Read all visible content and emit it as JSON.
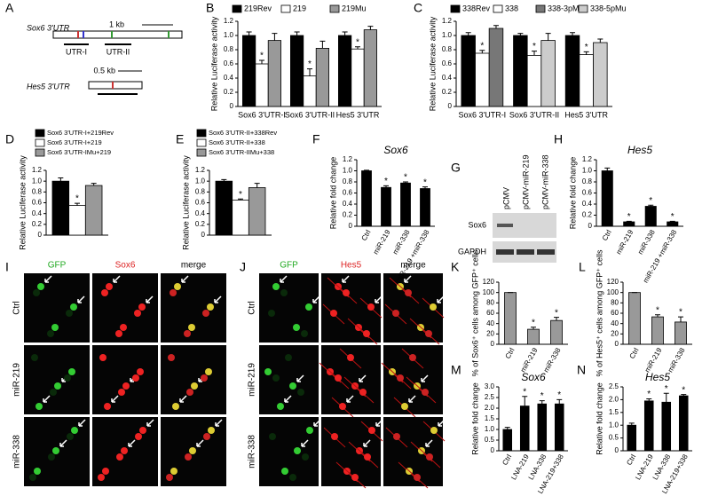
{
  "panel_letters": [
    "A",
    "B",
    "C",
    "D",
    "E",
    "F",
    "G",
    "H",
    "I",
    "J",
    "K",
    "L",
    "M",
    "N"
  ],
  "diagram": {
    "sox6": "Sox6 3'UTR",
    "scale1": "1 kb",
    "utr1": "UTR-I",
    "utr2": "UTR-II",
    "scale2": "0.5 kb",
    "hes5": "Hes5 3'UTR"
  },
  "blot": {
    "lanes": [
      "pCMV",
      "pCMV-miR-219",
      "pCMV-miR-338"
    ],
    "bands": [
      "Sox6",
      "GAPDH"
    ]
  },
  "images_I": {
    "columns": [
      "GFP",
      "Sox6",
      "merge"
    ],
    "rows": [
      "Ctrl",
      "miR-219",
      "miR-338"
    ]
  },
  "images_J": {
    "columns": [
      "GFP",
      "Hes5",
      "merge"
    ],
    "rows": [
      "Ctrl",
      "miR-219",
      "miR-338"
    ]
  },
  "chart_data": [
    {
      "type": "bar",
      "ylabel": "Relative Luciferase activity",
      "categories": [
        "Sox6 3'UTR-I",
        "Sox6 3'UTR-II",
        "Hes5 3'UTR"
      ],
      "series": [
        {
          "name": "219Rev",
          "color": "#000000",
          "values": [
            1.0,
            1.0,
            1.0
          ],
          "errors": [
            0.05,
            0.05,
            0.05
          ],
          "annotations": [
            null,
            null,
            null
          ]
        },
        {
          "name": "219",
          "color": "#ffffff",
          "values": [
            0.6,
            0.43,
            0.81
          ],
          "errors": [
            0.05,
            0.1,
            0.03
          ],
          "annotations": [
            "*",
            "*",
            "*"
          ]
        },
        {
          "name": "219Mu",
          "color": "#999999",
          "values": [
            0.93,
            0.82,
            1.08
          ],
          "errors": [
            0.1,
            0.1,
            0.05
          ],
          "annotations": [
            null,
            null,
            null
          ]
        }
      ],
      "ylim": [
        0,
        1.2
      ],
      "yticks": [
        0,
        0.2,
        0.4,
        0.6,
        0.8,
        {
          "value": 1,
          "label": "1.0"
        },
        1.2
      ]
    },
    {
      "type": "bar",
      "ylabel": "Relative Luciferase activity",
      "categories": [
        "Sox6 3'UTR-I",
        "Sox6 3'UTR-II",
        "Hes5 3'UTR"
      ],
      "series": [
        {
          "name": "338Rev",
          "color": "#000000",
          "values": [
            1.0,
            1.0,
            1.0
          ],
          "errors": [
            0.04,
            0.03,
            0.04
          ],
          "annotations": [
            null,
            null,
            null
          ]
        },
        {
          "name": "338",
          "color": "#ffffff",
          "values": [
            0.75,
            0.72,
            0.73
          ],
          "errors": [
            0.04,
            0.06,
            0.04
          ],
          "annotations": [
            "*",
            "*",
            "*"
          ]
        },
        {
          "name": "338-3pMu",
          "color": "#777777",
          "values": [
            1.1,
            null,
            null
          ],
          "errors": [
            0.04,
            null,
            null
          ],
          "annotations": [
            null,
            null,
            null
          ]
        },
        {
          "name": "338-5pMu",
          "color": "#cccccc",
          "values": [
            null,
            0.93,
            0.9
          ],
          "errors": [
            null,
            0.1,
            0.05
          ],
          "annotations": [
            null,
            null,
            null
          ]
        }
      ],
      "ylim": [
        0,
        1.2
      ],
      "yticks": [
        0,
        0.2,
        0.4,
        0.6,
        0.8,
        {
          "value": 1,
          "label": "1.0"
        },
        1.2
      ]
    },
    {
      "type": "bar",
      "ylabel": "Relative Luciferase activity",
      "categories": [
        null
      ],
      "series": [
        {
          "name": "Sox6 3'UTR-I+219Rev",
          "color": "#000000",
          "values": [
            1.0
          ],
          "errors": [
            0.06
          ],
          "annotations": [
            null
          ]
        },
        {
          "name": "Sox6 3'UTR-I+219",
          "color": "#ffffff",
          "values": [
            0.55
          ],
          "errors": [
            0.04
          ],
          "annotations": [
            "*"
          ]
        },
        {
          "name": "Sox6 3'UTR-IMu+219",
          "color": "#999999",
          "values": [
            0.92
          ],
          "errors": [
            0.04
          ],
          "annotations": [
            null
          ]
        }
      ],
      "ylim": [
        0,
        1.2
      ],
      "yticks": [
        0,
        0.2,
        0.4,
        0.6,
        0.8,
        {
          "value": 1,
          "label": "1.0"
        },
        1.2
      ]
    },
    {
      "type": "bar",
      "ylabel": "Relative Luciferase activity",
      "categories": [
        null
      ],
      "series": [
        {
          "name": "Sox6 3'UTR-II+338Rev",
          "color": "#000000",
          "values": [
            1.0
          ],
          "errors": [
            0.03
          ],
          "annotations": [
            null
          ]
        },
        {
          "name": "Sox6 3'UTR-II+338",
          "color": "#ffffff",
          "values": [
            0.65
          ],
          "errors": [
            0.02
          ],
          "annotations": [
            "*"
          ]
        },
        {
          "name": "Sox6 3'UTR-IIMu+338",
          "color": "#999999",
          "values": [
            0.88
          ],
          "errors": [
            0.08
          ],
          "annotations": [
            null
          ]
        }
      ],
      "ylim": [
        0,
        1.2
      ],
      "yticks": [
        0,
        0.2,
        0.4,
        0.6,
        0.8,
        {
          "value": 1,
          "label": "1.0"
        },
        1.2
      ]
    },
    {
      "type": "bar",
      "title": "Sox6",
      "ylabel": "Relative fold change",
      "categories": [
        "Ctrl",
        "miR-219",
        "miR-338",
        "miR-219 +miR-338"
      ],
      "color": "#000000",
      "values": [
        1.0,
        0.7,
        0.78,
        0.68
      ],
      "errors": [
        0.01,
        0.03,
        0.02,
        0.03
      ],
      "annotations": [
        null,
        "*",
        "*",
        "*"
      ],
      "ylim": [
        0,
        1.2
      ],
      "yticks": [
        0,
        0.2,
        0.4,
        0.6,
        0.8,
        {
          "value": 1,
          "label": "1.0"
        },
        1.2
      ]
    },
    {
      "type": "bar",
      "title": "Hes5",
      "ylabel": "Relative fold change",
      "categories": [
        "Ctrl",
        "miR-219",
        "miR-338",
        "miR-219 +miR-338"
      ],
      "color": "#000000",
      "values": [
        1.0,
        0.08,
        0.36,
        0.08
      ],
      "errors": [
        0.05,
        0.01,
        0.02,
        0.01
      ],
      "annotations": [
        null,
        "*",
        "*",
        "*"
      ],
      "ylim": [
        0,
        1.2
      ],
      "yticks": [
        0,
        0.2,
        0.4,
        0.6,
        0.8,
        {
          "value": 1,
          "label": "1.0"
        },
        1.2
      ]
    },
    {
      "type": "bar",
      "ylabel": "% of Sox6⁺ cells among GFP⁺ cells",
      "categories": [
        "Ctrl",
        "miR-219",
        "miR-338"
      ],
      "color": "#999999",
      "values": [
        100,
        29,
        46
      ],
      "errors": [
        0,
        4,
        6
      ],
      "annotations": [
        null,
        "*",
        "*"
      ],
      "ylim": [
        0,
        120
      ],
      "yticks": [
        0,
        20,
        40,
        60,
        80,
        100,
        120
      ]
    },
    {
      "type": "bar",
      "ylabel": "% of Hes5⁺ cells among GFP⁺ cells",
      "categories": [
        "Ctrl",
        "miR-219",
        "miR-338"
      ],
      "color": "#999999",
      "values": [
        100,
        53,
        43
      ],
      "errors": [
        0,
        4,
        10
      ],
      "annotations": [
        null,
        "*",
        "*"
      ],
      "ylim": [
        0,
        120
      ],
      "yticks": [
        0,
        20,
        40,
        60,
        80,
        100,
        120
      ]
    },
    {
      "type": "bar",
      "title": "Sox6",
      "ylabel": "Relative fold change",
      "categories": [
        "Ctrl",
        "LNA-219",
        "LNA-338",
        "LNA-219+338"
      ],
      "color": "#000000",
      "values": [
        1.0,
        2.1,
        2.2,
        2.2
      ],
      "errors": [
        0.1,
        0.45,
        0.15,
        0.2
      ],
      "annotations": [
        null,
        "*",
        "*",
        "*"
      ],
      "ylim": [
        0,
        3
      ],
      "yticks": [
        0,
        0.5,
        {
          "value": 1,
          "label": "1.0"
        },
        1.5,
        {
          "value": 2,
          "label": "2.0"
        },
        2.5,
        {
          "value": 3,
          "label": "3.0"
        }
      ]
    },
    {
      "type": "bar",
      "title": "Hes5",
      "ylabel": "Relative fold change",
      "categories": [
        "Ctrl",
        "LNA-219",
        "LNA-338",
        "LNA-219+338"
      ],
      "color": "#000000",
      "values": [
        1.0,
        1.95,
        1.9,
        2.15
      ],
      "errors": [
        0.08,
        0.08,
        0.35,
        0.05
      ],
      "annotations": [
        null,
        "*",
        "*",
        "*"
      ],
      "ylim": [
        0,
        2.5
      ],
      "yticks": [
        0,
        0.5,
        {
          "value": 1,
          "label": "1.0"
        },
        1.5,
        {
          "value": 2,
          "label": "2.0"
        },
        2.5
      ]
    }
  ]
}
